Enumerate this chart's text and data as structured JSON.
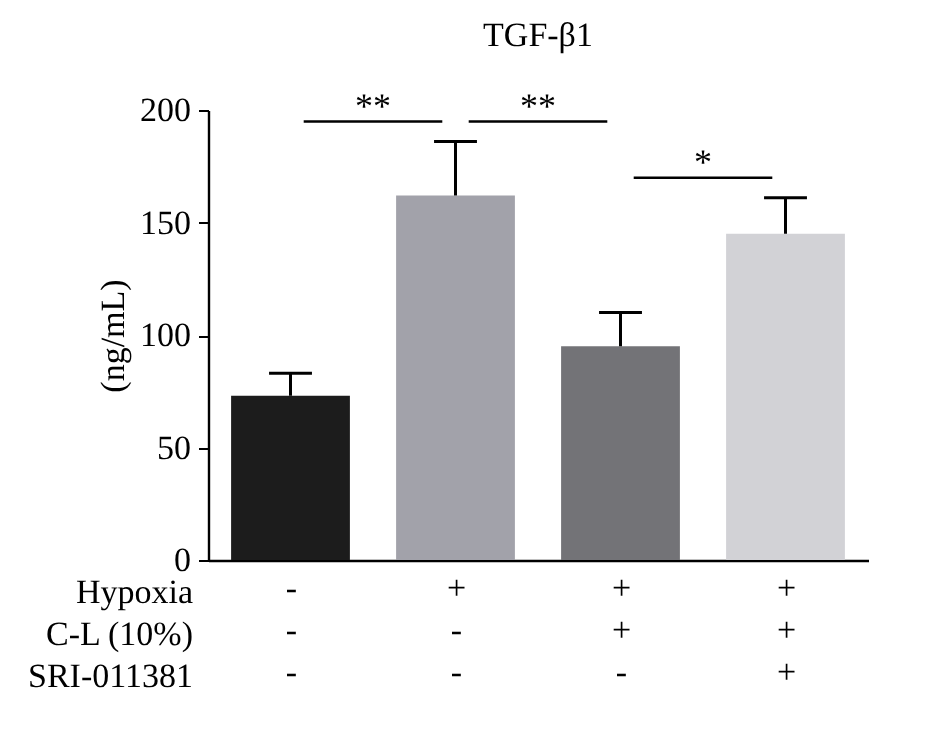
{
  "chart_data": {
    "type": "bar",
    "title": "TGF-β1",
    "ylabel": "(ng/mL)",
    "categories": [
      "- - -",
      "+ - -",
      "+ + -",
      "+ + +"
    ],
    "values": [
      73,
      162,
      95,
      145
    ],
    "colors": [
      "#1c1c1c",
      "#a2a2aa",
      "#737377",
      "#d2d2d6"
    ],
    "errors": [
      [
        73,
        83
      ],
      [
        162,
        186
      ],
      [
        95,
        110
      ],
      [
        145,
        161
      ]
    ],
    "ylim": [
      0,
      200
    ],
    "yticks": [
      0,
      50,
      100,
      150,
      200
    ],
    "grid": false,
    "annotations": [
      "Hypoxia",
      "C-L (10%)",
      "SRI-011381",
      "**",
      "**",
      "*"
    ]
  }
}
